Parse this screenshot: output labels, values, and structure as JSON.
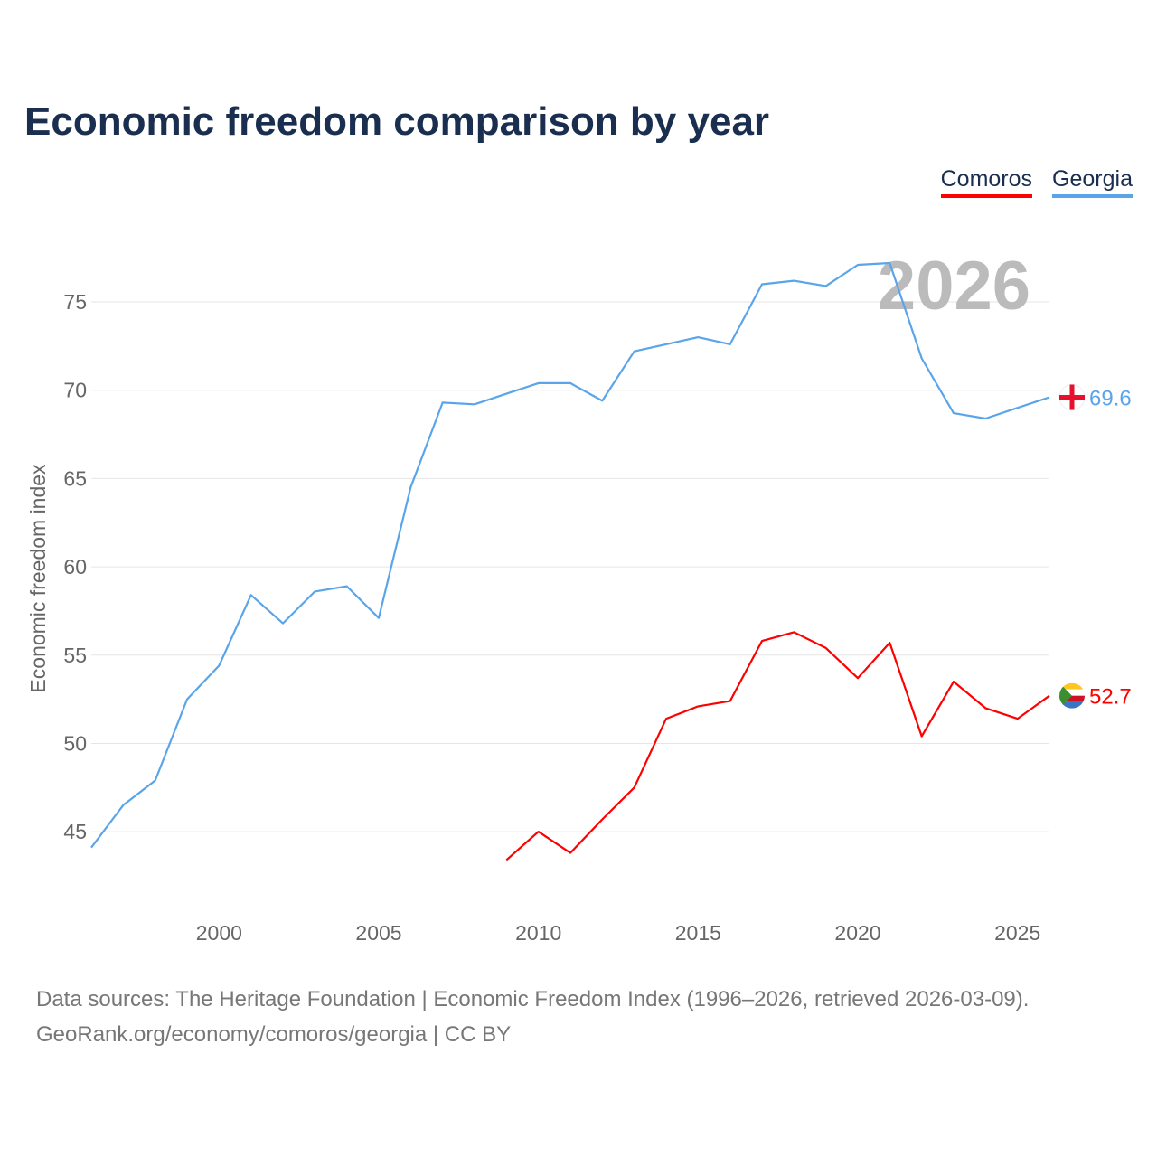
{
  "chart_data": {
    "type": "line",
    "title": "Economic freedom comparison by year",
    "ylabel": "Economic freedom index",
    "xlabel": "",
    "xlim": [
      1996,
      2026
    ],
    "ylim": [
      40.4,
      79.3
    ],
    "x_ticks": [
      2000,
      2005,
      2010,
      2015,
      2020,
      2025
    ],
    "y_ticks": [
      45,
      50,
      55,
      60,
      65,
      70,
      75
    ],
    "grid": true,
    "legend_position": "top-right",
    "year_watermark": "2026",
    "series": [
      {
        "name": "Comoros",
        "color": "#ff0000",
        "end_label": "52.7",
        "x": [
          2009,
          2010,
          2011,
          2012,
          2013,
          2014,
          2015,
          2016,
          2017,
          2018,
          2019,
          2020,
          2021,
          2022,
          2023,
          2024,
          2025,
          2026
        ],
        "values": [
          43.4,
          45.0,
          43.8,
          45.7,
          47.5,
          51.4,
          52.1,
          52.4,
          55.8,
          56.3,
          55.4,
          53.7,
          55.7,
          50.4,
          53.5,
          52.0,
          51.4,
          52.7
        ]
      },
      {
        "name": "Georgia",
        "color": "#5aa5ea",
        "end_label": "69.6",
        "x": [
          1996,
          1997,
          1998,
          1999,
          2000,
          2001,
          2002,
          2003,
          2004,
          2005,
          2006,
          2007,
          2008,
          2009,
          2010,
          2011,
          2012,
          2013,
          2014,
          2015,
          2016,
          2017,
          2018,
          2019,
          2020,
          2021,
          2022,
          2023,
          2024,
          2025,
          2026
        ],
        "values": [
          44.1,
          46.5,
          47.9,
          52.5,
          54.4,
          58.4,
          56.8,
          58.6,
          58.9,
          57.1,
          64.5,
          69.3,
          69.2,
          69.8,
          70.4,
          70.4,
          69.4,
          72.2,
          72.6,
          73.0,
          72.6,
          76.0,
          76.2,
          75.9,
          77.1,
          77.2,
          71.8,
          68.7,
          68.4,
          69.0,
          69.6
        ]
      }
    ]
  },
  "footer": {
    "line1": "Data sources: The Heritage Foundation | Economic Freedom Index (1996–2026, retrieved 2026-03-09).",
    "line2": "GeoRank.org/economy/comoros/georgia | CC BY"
  }
}
